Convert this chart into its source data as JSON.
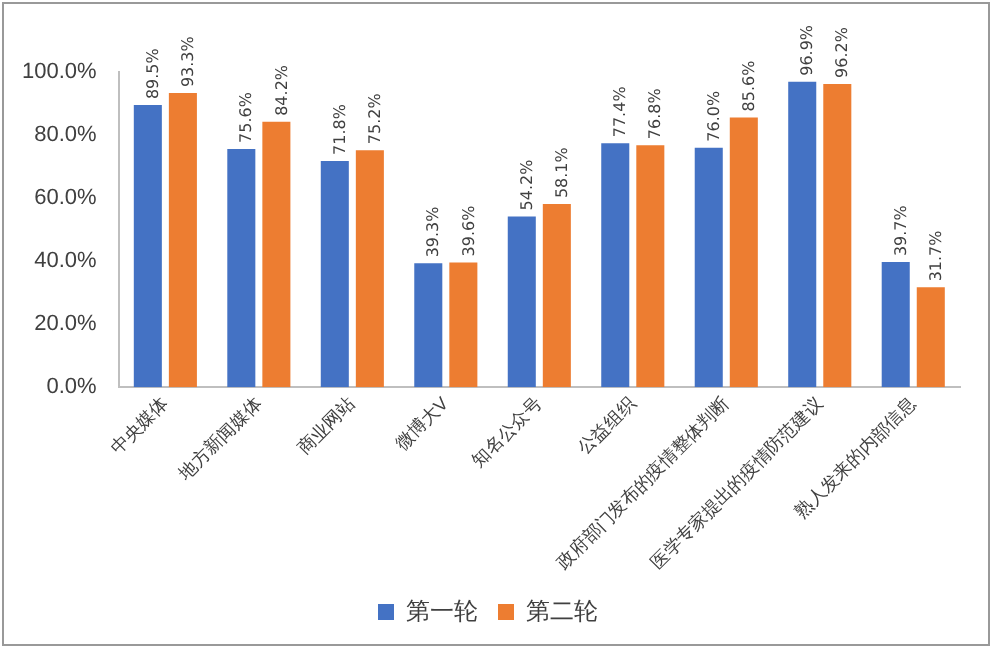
{
  "chart_data": {
    "type": "bar",
    "categories": [
      "中央媒体",
      "地方新闻媒体",
      "商业网站",
      "微博大V",
      "知名公众号",
      "公益组织",
      "政府部门发布的疫情整体判断",
      "医学专家提出的疫情防范建议",
      "熟人发来的内部信息"
    ],
    "series": [
      {
        "name": "第一轮",
        "color": "#4472c4",
        "values": [
          89.5,
          75.6,
          71.8,
          39.3,
          54.2,
          77.4,
          76.0,
          96.9,
          39.7
        ],
        "value_labels": [
          "89.5%",
          "75.6%",
          "71.8%",
          "39.3%",
          "54.2%",
          "77.4%",
          "76.0%",
          "96.9%",
          "39.7%"
        ]
      },
      {
        "name": "第二轮",
        "color": "#ed7d31",
        "values": [
          93.3,
          84.2,
          75.2,
          39.6,
          58.1,
          76.8,
          85.6,
          96.2,
          31.7
        ],
        "value_labels": [
          "93.3%",
          "84.2%",
          "75.2%",
          "39.6%",
          "58.1%",
          "76.8%",
          "85.6%",
          "96.2%",
          "31.7%"
        ]
      }
    ],
    "ylim": [
      0,
      100
    ],
    "yticks": [
      {
        "value": 0,
        "label": "0.0%"
      },
      {
        "value": 20,
        "label": "20.0%"
      },
      {
        "value": 40,
        "label": "40.0%"
      },
      {
        "value": 60,
        "label": "60.0%"
      },
      {
        "value": 80,
        "label": "80.0%"
      },
      {
        "value": 100,
        "label": "100.0%"
      }
    ],
    "grid": false,
    "legend": "bottom"
  }
}
